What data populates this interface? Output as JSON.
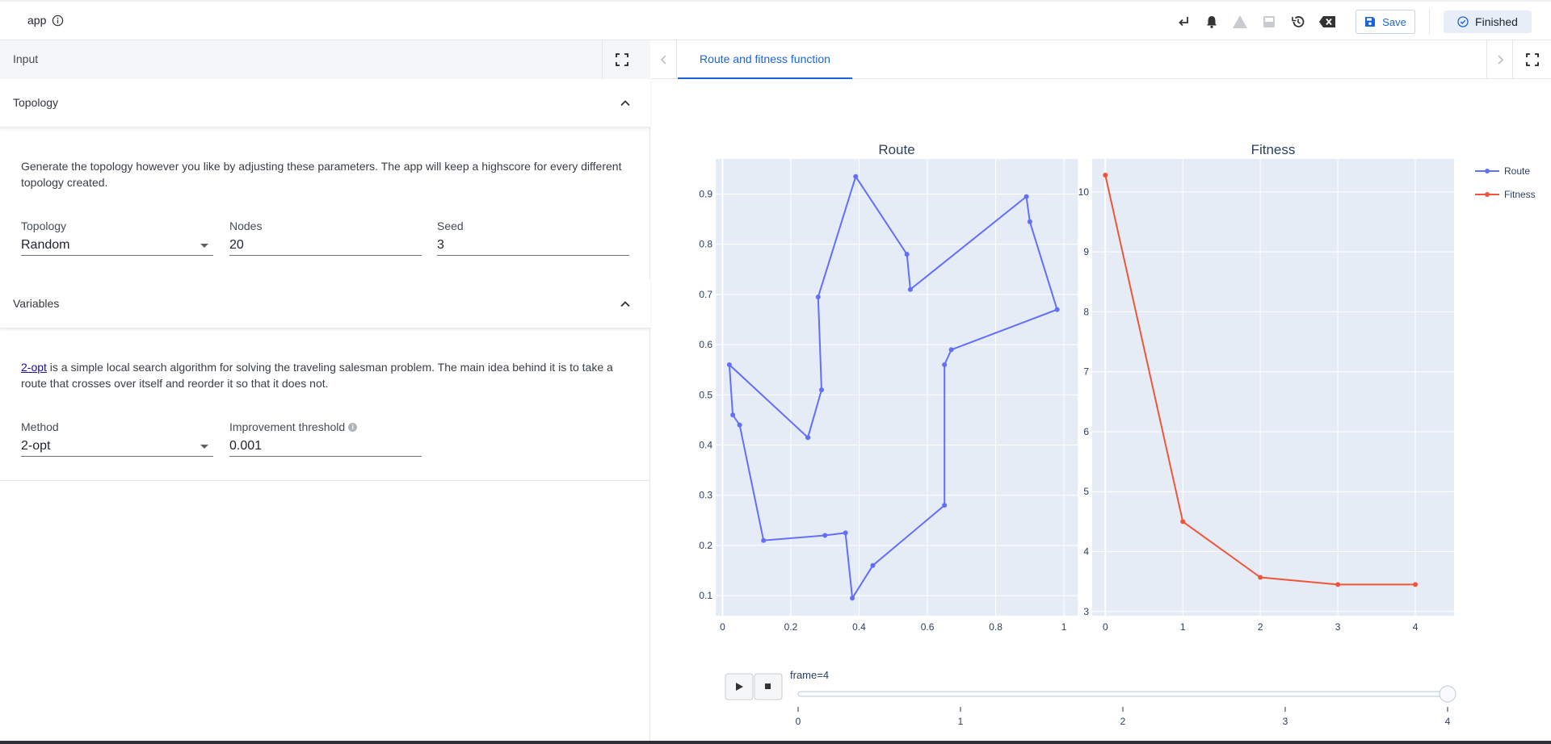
{
  "app": {
    "title": "app"
  },
  "toolbar": {
    "save_label": "Save",
    "status_label": "Finished"
  },
  "input_panel": {
    "title": "Input",
    "topology_section": {
      "title": "Topology",
      "description": "Generate the topology however you like by adjusting these parameters. The app will keep a highscore for every different topology created.",
      "fields": {
        "topology": {
          "label": "Topology",
          "value": "Random"
        },
        "nodes": {
          "label": "Nodes",
          "value": "20"
        },
        "seed": {
          "label": "Seed",
          "value": "3"
        }
      }
    },
    "variables_section": {
      "title": "Variables",
      "description_link": "2-opt",
      "description_rest": " is a simple local search algorithm for solving the traveling salesman problem. The main idea behind it is to take a route that crosses over itself and reorder it so that it does not.",
      "fields": {
        "method": {
          "label": "Method",
          "value": "2-opt"
        },
        "threshold": {
          "label": "Improvement threshold",
          "value": "0.001"
        }
      }
    }
  },
  "output_panel": {
    "tab_label": "Route and fitness function"
  },
  "colors": {
    "route": "#636efa",
    "fitness": "#ef553b",
    "plot_bg": "#e5ecf6",
    "accent": "#1b64d8"
  },
  "chart_data": [
    {
      "type": "line",
      "title": "Route",
      "xlim": [
        -0.02,
        1.04
      ],
      "ylim": [
        0.06,
        0.97
      ],
      "xticks": [
        "0",
        "0.2",
        "0.4",
        "0.6",
        "0.8",
        "1"
      ],
      "yticks": [
        "0.1",
        "0.2",
        "0.3",
        "0.4",
        "0.5",
        "0.6",
        "0.7",
        "0.8",
        "0.9"
      ],
      "series": [
        {
          "name": "Route",
          "x": [
            0.25,
            0.29,
            0.28,
            0.39,
            0.54,
            0.55,
            0.89,
            0.9,
            0.98,
            0.67,
            0.65,
            0.65,
            0.44,
            0.38,
            0.36,
            0.3,
            0.12,
            0.05,
            0.03,
            0.02,
            0.25
          ],
          "y": [
            0.415,
            0.51,
            0.695,
            0.935,
            0.78,
            0.71,
            0.895,
            0.845,
            0.67,
            0.59,
            0.56,
            0.28,
            0.16,
            0.095,
            0.225,
            0.22,
            0.21,
            0.44,
            0.46,
            0.56,
            0.415
          ]
        }
      ]
    },
    {
      "type": "line",
      "title": "Fitness",
      "xlim": [
        -0.17,
        4.5
      ],
      "ylim": [
        2.93,
        10.55
      ],
      "xticks": [
        "0",
        "1",
        "2",
        "3",
        "4"
      ],
      "yticks": [
        "3",
        "4",
        "5",
        "6",
        "7",
        "8",
        "9",
        "10"
      ],
      "series": [
        {
          "name": "Fitness",
          "x": [
            0,
            1,
            2,
            3,
            4
          ],
          "y": [
            10.28,
            4.5,
            3.57,
            3.45,
            3.45
          ]
        }
      ]
    }
  ],
  "legend": {
    "placement": "top-right",
    "entries": [
      "Route",
      "Fitness"
    ]
  },
  "animation": {
    "current_label": "frame=4",
    "frame": 4,
    "frame_ticks": [
      "0",
      "1",
      "2",
      "3",
      "4"
    ]
  }
}
